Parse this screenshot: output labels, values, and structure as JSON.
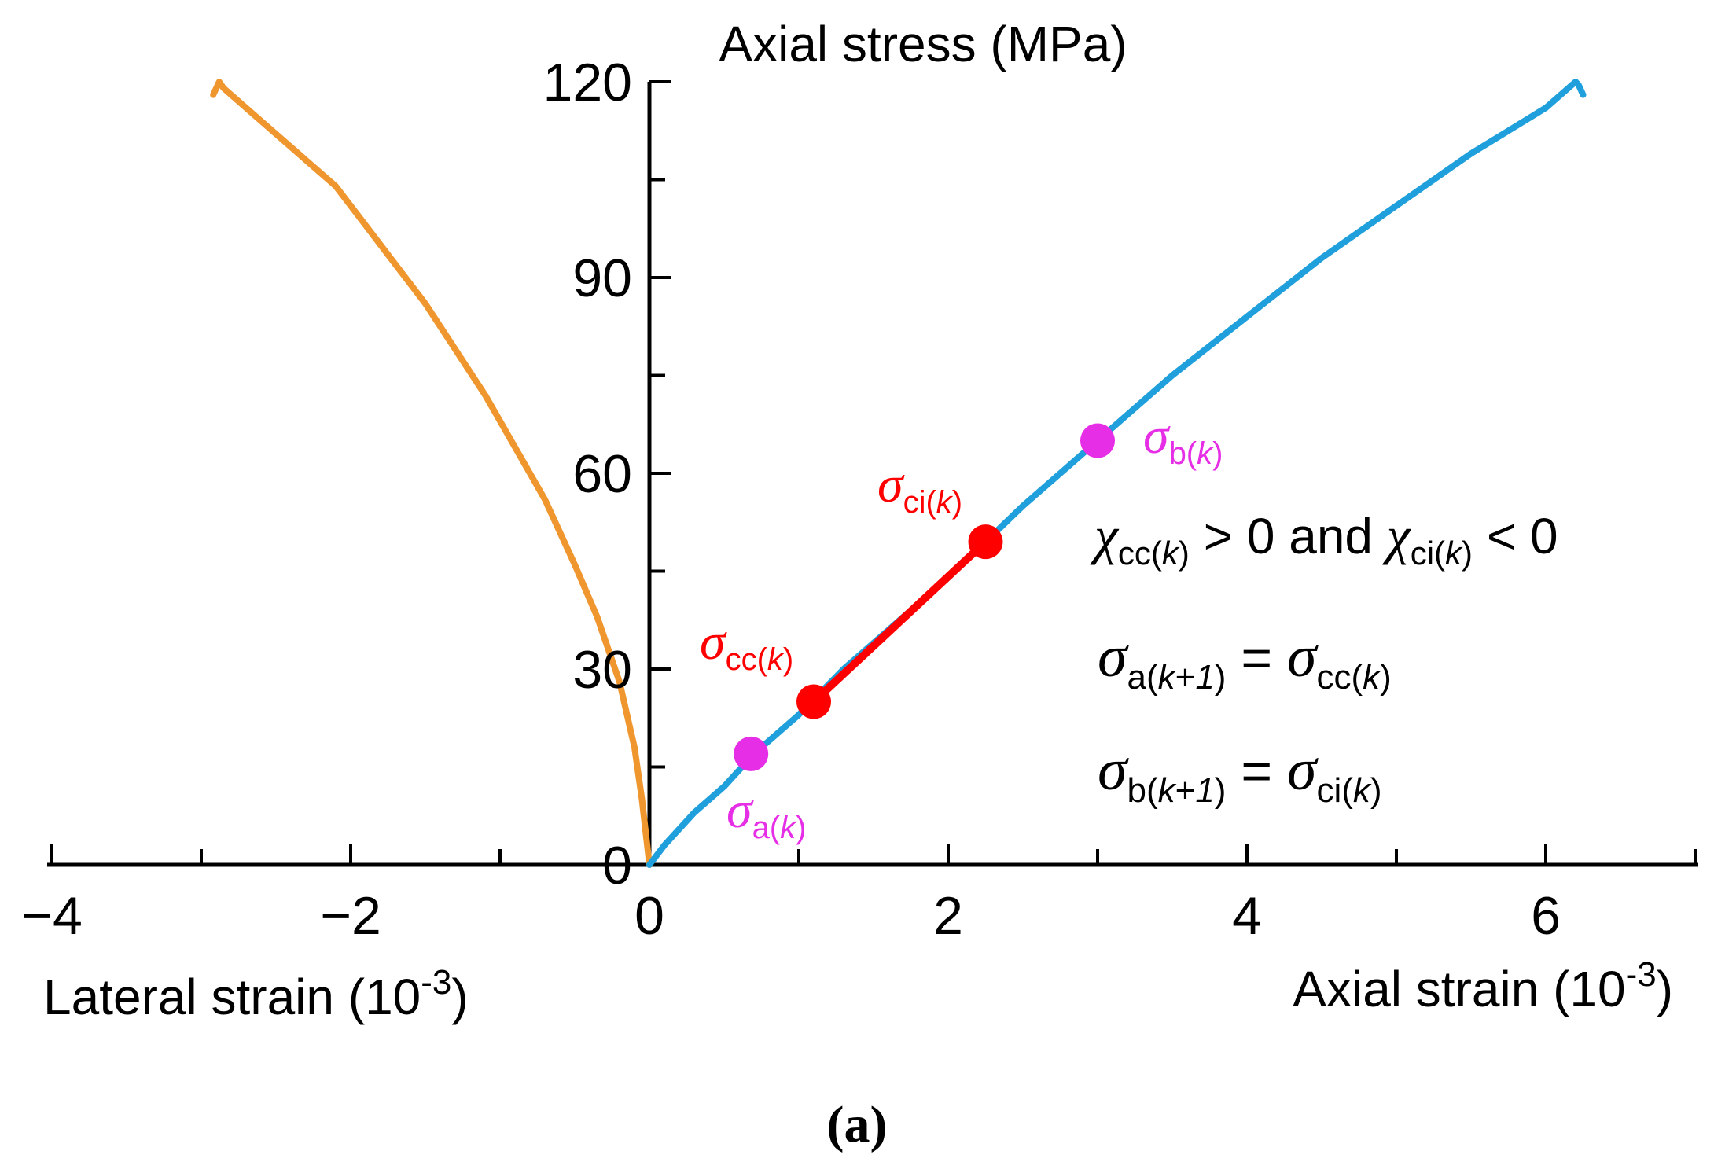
{
  "chart_data": {
    "type": "line",
    "title": "",
    "caption": "a",
    "axes": {
      "y": {
        "label": "Axial stress (MPa)",
        "range": [
          0,
          120
        ],
        "ticks": [
          0,
          30,
          60,
          90,
          120
        ],
        "minor_step": 15
      },
      "x": {
        "range": [
          -4,
          7
        ],
        "ticks": [
          -4,
          -2,
          0,
          2,
          4,
          6
        ],
        "tick_labels": [
          "−4",
          "−2",
          "0",
          "2",
          "4",
          "6"
        ],
        "minor_step": 1,
        "left_label": {
          "text": "Lateral strain (10",
          "exp": "-3",
          "close": ")"
        },
        "right_label": {
          "text": "Axial strain (10",
          "exp": "-3",
          "close": ")"
        }
      },
      "grid": false
    },
    "colors": {
      "lateral": "#F0962E",
      "axial": "#1FA0DC",
      "segment": "#FF0000",
      "point_ab": "#E62EE6",
      "point_c": "#FF0000",
      "axis": "#000000",
      "text": "#000000"
    },
    "series": [
      {
        "name": "Lateral strain",
        "color_key": "lateral",
        "x": [
          0,
          -0.05,
          -0.1,
          -0.2,
          -0.35,
          -0.5,
          -0.7,
          -0.9,
          -1.1,
          -1.3,
          -1.5,
          -1.7,
          -1.9,
          -2.1,
          -2.3,
          -2.5,
          -2.7,
          -2.85,
          -2.88,
          -2.92
        ],
        "y": [
          0,
          10,
          18,
          28,
          38,
          46,
          56,
          64,
          72,
          79,
          86,
          92,
          98,
          104,
          108,
          112,
          116,
          119,
          120,
          118
        ]
      },
      {
        "name": "Axial strain",
        "color_key": "axial",
        "x": [
          0,
          0.1,
          0.3,
          0.5,
          0.7,
          1.0,
          1.3,
          1.6,
          2.0,
          2.5,
          3.0,
          3.5,
          4.0,
          4.5,
          5.0,
          5.5,
          6.0,
          6.2,
          6.22,
          6.25
        ],
        "y": [
          0,
          3,
          8,
          12,
          17,
          23,
          30,
          36,
          44,
          55,
          65,
          75,
          84,
          93,
          101,
          109,
          116,
          120,
          119.5,
          118
        ]
      },
      {
        "name": "Highlighted segment",
        "color_key": "segment",
        "x": [
          1.1,
          2.25
        ],
        "y": [
          25,
          49.5
        ]
      }
    ],
    "points": [
      {
        "symbol": "σ",
        "sub": "a(",
        "sub_italic": "k",
        "sub_end": ")",
        "x": 0.68,
        "y": 17,
        "color_key": "point_ab",
        "label_pos": "below"
      },
      {
        "symbol": "σ",
        "sub": "cc(",
        "sub_italic": "k",
        "sub_end": ")",
        "x": 1.1,
        "y": 25,
        "color_key": "point_c",
        "label_pos": "above-left"
      },
      {
        "symbol": "σ",
        "sub": "ci(",
        "sub_italic": "k",
        "sub_end": ")",
        "x": 2.25,
        "y": 49.5,
        "color_key": "point_c",
        "label_pos": "above-left"
      },
      {
        "symbol": "σ",
        "sub": "b(",
        "sub_italic": "k",
        "sub_end": ")",
        "x": 3.0,
        "y": 65,
        "color_key": "point_ab",
        "label_pos": "right"
      }
    ],
    "annotations": {
      "condition": {
        "chi": "χ",
        "sub1": "cc(",
        "k": "k",
        "close": ")",
        "mid": " > 0 and ",
        "sub2": "ci(",
        "end": " < 0"
      },
      "eq1": {
        "sigma": "σ",
        "lhs_sub": "a(",
        "lhs_k": "k",
        "lhs_plus": "+",
        "lhs_one": "1",
        "lhs_close": ")",
        "eq": " = ",
        "rhs_sub": "cc(",
        "rhs_k": "k",
        "rhs_close": ")"
      },
      "eq2": {
        "sigma": "σ",
        "lhs_sub": "b(",
        "lhs_k": "k",
        "lhs_plus": "+",
        "lhs_one": "1",
        "lhs_close": ")",
        "eq": " = ",
        "rhs_sub": "ci(",
        "rhs_k": "k",
        "rhs_close": ")"
      }
    }
  }
}
